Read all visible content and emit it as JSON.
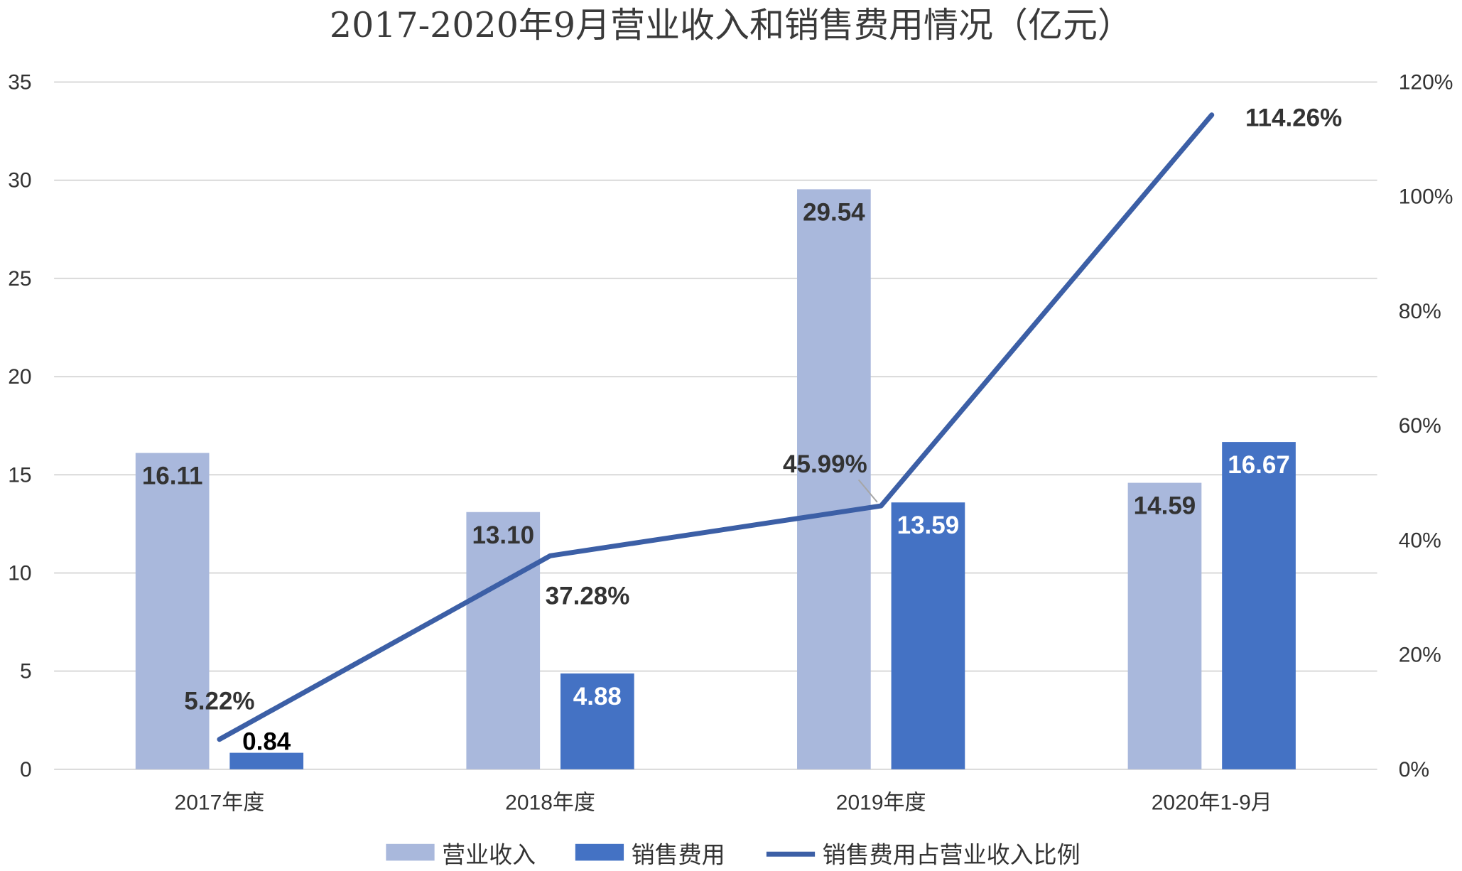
{
  "chart_data": {
    "type": "bar+line",
    "title": "2017-2020年9月营业收入和销售费用情况（亿元）",
    "categories": [
      "2017年度",
      "2018年度",
      "2019年度",
      "2020年1-9月"
    ],
    "y_left": {
      "min": 0,
      "max": 35,
      "ticks": [
        "0",
        "5",
        "10",
        "15",
        "20",
        "25",
        "30",
        "35"
      ]
    },
    "y_right": {
      "min": 0,
      "max": 1.2,
      "ticks": [
        "0%",
        "20%",
        "40%",
        "60%",
        "80%",
        "100%",
        "120%"
      ]
    },
    "series": [
      {
        "name": "营业收入",
        "type": "bar",
        "axis": "left",
        "color": "#a9b8dc",
        "values": [
          16.11,
          13.1,
          29.54,
          14.59
        ],
        "labels": [
          "16.11",
          "13.10",
          "29.54",
          "14.59"
        ],
        "label_color": "#333333"
      },
      {
        "name": "销售费用",
        "type": "bar",
        "axis": "left",
        "color": "#4472c4",
        "values": [
          0.84,
          4.88,
          13.59,
          16.67
        ],
        "labels": [
          "0.84",
          "4.88",
          "13.59",
          "16.67"
        ],
        "label_colors": [
          "#000000",
          "#ffffff",
          "#ffffff",
          "#ffffff"
        ]
      },
      {
        "name": "销售费用占营业收入比例",
        "type": "line",
        "axis": "right",
        "color": "#3c5fa6",
        "values": [
          0.0522,
          0.3728,
          0.4599,
          1.1426
        ],
        "labels": [
          "5.22%",
          "37.28%",
          "45.99%",
          "114.26%"
        ],
        "label_color": "#333333"
      }
    ],
    "legend": {
      "position": "bottom",
      "items": [
        "营业收入",
        "销售费用",
        "销售费用占营业收入比例"
      ]
    },
    "grid": true
  }
}
